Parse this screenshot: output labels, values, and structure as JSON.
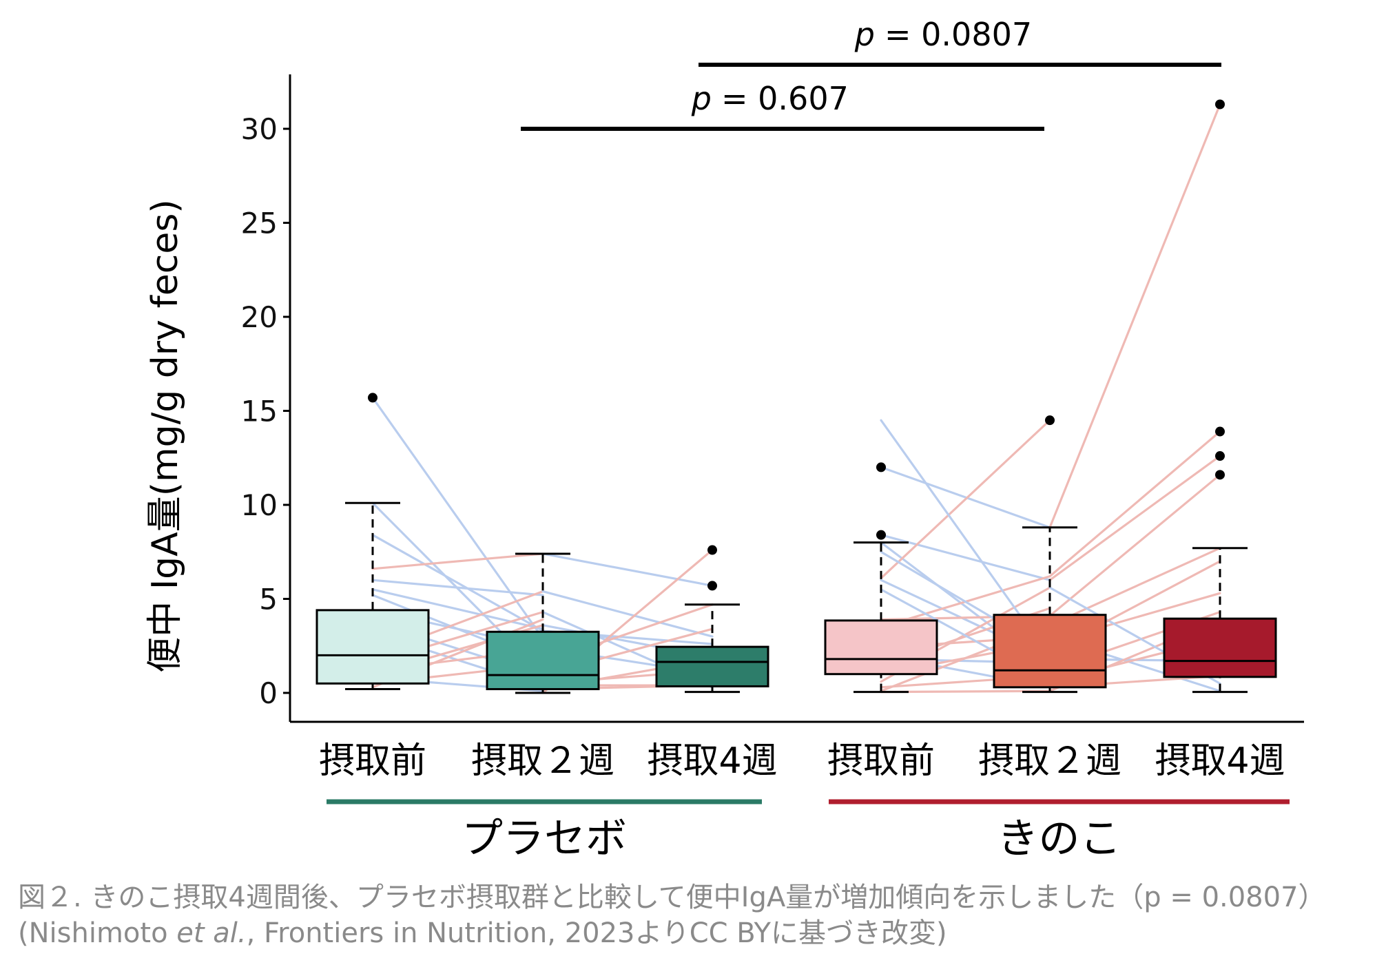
{
  "chart_data": {
    "type": "box",
    "ylabel": "便中 IgA量(mg/g dry feces)",
    "ylim": [
      -1.5,
      33
    ],
    "yticks": [
      0,
      5,
      10,
      15,
      20,
      25,
      30
    ],
    "categories": [
      "摂取前",
      "摂取２週",
      "摂取4週",
      "摂取前",
      "摂取２週",
      "摂取4週"
    ],
    "groups": [
      {
        "name": "プラセボ",
        "color": "#2a7a66",
        "members": [
          0,
          1,
          2
        ]
      },
      {
        "name": "きのこ",
        "color": "#b01e2e",
        "members": [
          3,
          4,
          5
        ]
      }
    ],
    "boxes": [
      {
        "category": "摂取前",
        "group": "プラセボ",
        "min": 0.2,
        "q1": 0.5,
        "median": 2.0,
        "q3": 4.4,
        "max": 10.1,
        "outliers": [
          15.7
        ],
        "fill": "#d3eee9"
      },
      {
        "category": "摂取２週",
        "group": "プラセボ",
        "min": 0.0,
        "q1": 0.2,
        "median": 0.95,
        "q3": 3.25,
        "max": 7.4,
        "outliers": [],
        "fill": "#48a595"
      },
      {
        "category": "摂取4週",
        "group": "プラセボ",
        "min": 0.05,
        "q1": 0.35,
        "median": 1.65,
        "q3": 2.45,
        "max": 4.7,
        "outliers": [
          5.7,
          7.6
        ],
        "fill": "#2d7d6a"
      },
      {
        "category": "摂取前",
        "group": "きのこ",
        "min": 0.05,
        "q1": 1.0,
        "median": 1.8,
        "q3": 3.85,
        "max": 8.0,
        "outliers": [
          8.4,
          12.0
        ],
        "fill": "#f5c5c8"
      },
      {
        "category": "摂取２週",
        "group": "きのこ",
        "min": 0.05,
        "q1": 0.3,
        "median": 1.2,
        "q3": 4.15,
        "max": 8.8,
        "outliers": [
          14.5
        ],
        "fill": "#de6b52"
      },
      {
        "category": "摂取4週",
        "group": "きのこ",
        "min": 0.05,
        "q1": 0.85,
        "median": 1.7,
        "q3": 3.95,
        "max": 7.7,
        "outliers": [
          11.6,
          12.6,
          13.9,
          31.3
        ],
        "fill": "#a61a2c"
      }
    ],
    "paired_lines": {
      "increase_color": "#efb9b4",
      "decrease_color": "#b9cdee",
      "placebo": [
        [
          15.7,
          2.9
        ],
        [
          10.1,
          1.0
        ],
        [
          8.4,
          3.3
        ],
        [
          6.6,
          7.4
        ],
        [
          6.0,
          5.2
        ],
        [
          5.5,
          3.4
        ],
        [
          5.2,
          1.6
        ],
        [
          4.4,
          2.4
        ],
        [
          3.8,
          0.9
        ],
        [
          3.2,
          0.3
        ],
        [
          2.0,
          5.4
        ],
        [
          1.6,
          4.3
        ],
        [
          1.2,
          2.3
        ],
        [
          1.0,
          3.6
        ],
        [
          0.8,
          0.1
        ],
        [
          0.5,
          1.5
        ],
        [
          0.3,
          3.9
        ],
        [
          0.2,
          0.4
        ],
        [
          7.4,
          5.7
        ],
        [
          5.4,
          3.0
        ],
        [
          4.3,
          0.3
        ],
        [
          3.6,
          1.9
        ],
        [
          3.3,
          2.6
        ],
        [
          2.4,
          1.0
        ],
        [
          1.6,
          4.7
        ],
        [
          1.0,
          3.4
        ],
        [
          0.4,
          0.4
        ],
        [
          0.2,
          1.8
        ],
        [
          0.0,
          7.6
        ],
        [
          0.5,
          1.2
        ]
      ],
      "mushroom": [
        [
          12.0,
          8.8
        ],
        [
          8.4,
          6.0
        ],
        [
          8.0,
          1.2
        ],
        [
          6.1,
          14.5
        ],
        [
          6.0,
          1.8
        ],
        [
          3.9,
          4.1
        ],
        [
          3.5,
          6.2
        ],
        [
          2.4,
          3.0
        ],
        [
          2.0,
          0.3
        ],
        [
          1.8,
          1.6
        ],
        [
          1.5,
          4.5
        ],
        [
          1.0,
          2.7
        ],
        [
          0.6,
          5.6
        ],
        [
          0.3,
          0.9
        ],
        [
          0.1,
          3.6
        ],
        [
          0.05,
          0.1
        ],
        [
          7.5,
          2.2
        ],
        [
          5.5,
          0.6
        ],
        [
          14.5,
          1.9
        ],
        [
          8.8,
          31.3
        ],
        [
          6.2,
          13.9
        ],
        [
          6.0,
          12.6
        ],
        [
          4.1,
          11.6
        ],
        [
          3.6,
          7.7
        ],
        [
          3.0,
          0.1
        ],
        [
          2.7,
          5.3
        ],
        [
          1.8,
          1.7
        ],
        [
          1.2,
          4.3
        ],
        [
          0.6,
          2.9
        ],
        [
          0.3,
          0.9
        ],
        [
          0.1,
          3.9
        ],
        [
          5.6,
          0.5
        ],
        [
          2.2,
          7.0
        ]
      ]
    },
    "significance": [
      {
        "label": "p",
        "value": "= 0.607",
        "from": 1,
        "to": 4
      },
      {
        "label": "p",
        "value": "= 0.0807",
        "from": 2,
        "to": 5
      }
    ]
  },
  "caption": {
    "line1": "図２. きのこ摂取4週間後、プラセボ摂取群と比較して便中IgA量が増加傾向を示しました（p = 0.0807）",
    "line2_prefix": "(Nishimoto ",
    "line2_italic": "et al.",
    "line2_suffix": ", Frontiers in Nutrition, 2023よりCC BYに基づき改変)"
  }
}
